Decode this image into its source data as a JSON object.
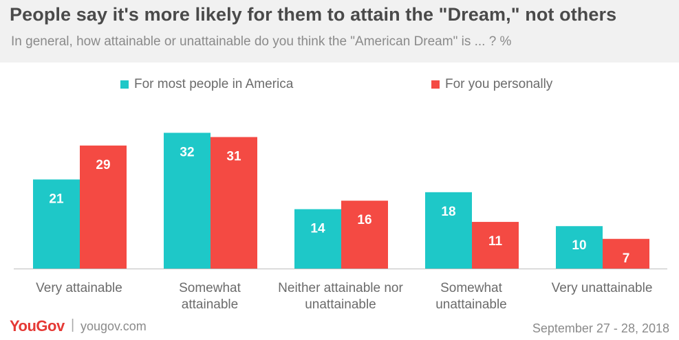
{
  "title": "People say it's more likely for them to attain the \"Dream,\" not others",
  "subtitle": "In general, how attainable or unattainable do you think the \"American Dream\" is ... ? %",
  "footer": {
    "logo": "YouGov",
    "separator": "|",
    "site": "yougov.com",
    "date": "September 27 - 28, 2018"
  },
  "colors": {
    "series1": "#1ec8c8",
    "series2": "#f44a43"
  },
  "chart_data": {
    "type": "bar",
    "title": "People say it's more likely for them to attain the \"Dream,\" not others",
    "categories": [
      "Very attainable",
      "Somewhat attainable",
      "Neither attainable nor unattainable",
      "Somewhat unattainable",
      "Very unattainable"
    ],
    "series": [
      {
        "name": "For most people in America",
        "values": [
          21,
          32,
          14,
          18,
          10
        ]
      },
      {
        "name": "For you personally",
        "values": [
          29,
          31,
          16,
          11,
          7
        ]
      }
    ],
    "ylim": [
      0,
      34
    ],
    "grid": false,
    "legend": "top",
    "data_labels": true
  }
}
